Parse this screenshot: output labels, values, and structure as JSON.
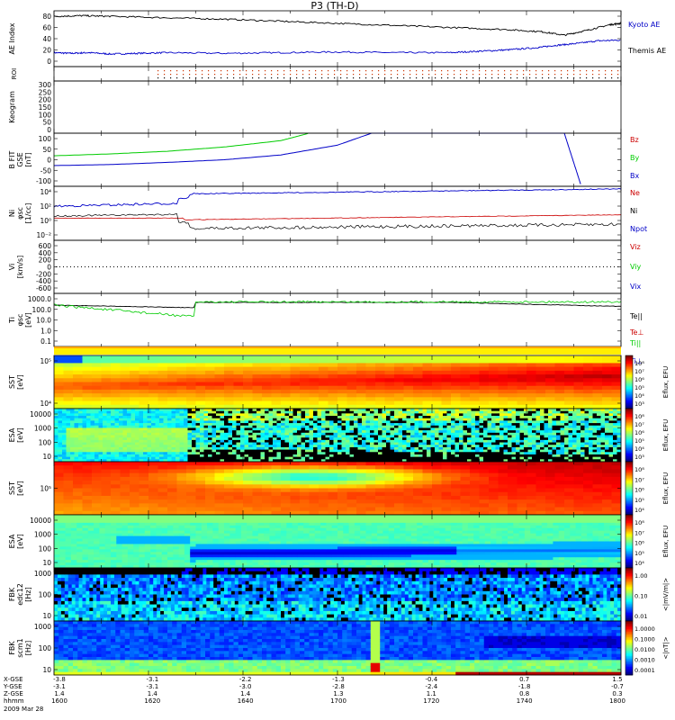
{
  "title": "P3 (TH-D)",
  "colors": {
    "black": "#000000",
    "blue": "#0000c8",
    "red": "#cc0000",
    "green": "#00cc00"
  },
  "chart_data": [
    {
      "type": "line",
      "ylabel": "AE Index",
      "ylim": [
        0,
        80
      ],
      "yticks": [
        "80",
        "60",
        "40",
        "20",
        "0"
      ],
      "series": [
        {
          "name": "Kyoto AE",
          "color": "#0000c8",
          "x": [
            0,
            0.03,
            0.06,
            0.1,
            0.15,
            0.2,
            0.3,
            0.4,
            0.5,
            0.6,
            0.7,
            0.75,
            0.8,
            0.85,
            0.88,
            0.92,
            0.96,
            1.0
          ],
          "values": [
            20,
            19,
            20,
            18,
            19,
            20,
            19,
            20,
            21,
            20,
            20,
            22,
            24,
            27,
            30,
            33,
            37,
            38
          ]
        },
        {
          "name": "Themis AE",
          "color": "#000000",
          "x": [
            0,
            0.05,
            0.1,
            0.2,
            0.3,
            0.4,
            0.5,
            0.6,
            0.7,
            0.8,
            0.86,
            0.9,
            0.94,
            0.98,
            1.0
          ],
          "values": [
            72,
            73,
            72,
            70,
            68,
            65,
            62,
            59,
            56,
            53,
            50,
            45,
            52,
            60,
            62
          ]
        }
      ]
    },
    {
      "type": "scatter",
      "ylabel": "ROI",
      "note_marks": "dotted"
    },
    {
      "type": "line",
      "ylabel": "Keogram",
      "ylim": [
        0,
        300
      ],
      "yticks": [
        "300",
        "250",
        "200",
        "150",
        "100",
        "50",
        "0"
      ]
    },
    {
      "type": "line",
      "ylabel": "B FIT",
      "ylabel2": "GSE",
      "ylabel3": "[nT]",
      "ylim": [
        -100,
        100
      ],
      "yticks": [
        "100",
        "50",
        "0",
        "-50",
        "-100"
      ],
      "series": [
        {
          "name": "Bz",
          "color": "#cc0000",
          "x": [],
          "values": []
        },
        {
          "name": "By",
          "color": "#00cc00",
          "x": [
            0,
            0.1,
            0.2,
            0.3,
            0.4,
            0.45
          ],
          "values": [
            15,
            22,
            32,
            48,
            72,
            100
          ]
        },
        {
          "name": "Bx",
          "color": "#0000c8",
          "x": [
            0,
            0.1,
            0.2,
            0.3,
            0.4,
            0.5,
            0.56,
            0.9,
            0.93
          ],
          "values": [
            -22,
            -18,
            -10,
            0,
            18,
            55,
            100,
            100,
            -100
          ]
        }
      ]
    },
    {
      "type": "line",
      "ylabel": "Ni",
      "ylabel2": "[1/cc]",
      "ylog": true,
      "yticks": [
        "10⁴",
        "10²",
        "10⁰",
        "10⁻²"
      ],
      "series": [
        {
          "name": "Ne",
          "color": "#cc0000"
        },
        {
          "name": "Ni",
          "color": "#000000"
        },
        {
          "name": "Npot",
          "color": "#0000c8"
        }
      ]
    },
    {
      "type": "line",
      "ylabel": "Vi",
      "ylabel2": "[km/s]",
      "ylim": [
        -600,
        600
      ],
      "yticks": [
        "600",
        "400",
        "200",
        "0",
        "-200",
        "-400",
        "-600"
      ],
      "series": [
        {
          "name": "Viz",
          "color": "#cc0000"
        },
        {
          "name": "Viy",
          "color": "#00cc00"
        },
        {
          "name": "Vix",
          "color": "#0000c8"
        }
      ]
    },
    {
      "type": "line",
      "ylabel": "Ti",
      "ylabel2": "[eV]",
      "ylog": true,
      "yticks": [
        "1000.0",
        "100.0",
        "10.0",
        "1.0",
        "0.1"
      ],
      "series": [
        {
          "name": "Te||",
          "color": "#000000"
        },
        {
          "name": "Te⊥",
          "color": "#cc0000"
        },
        {
          "name": "Ti||",
          "color": "#00cc00"
        },
        {
          "name": "Ti⊥",
          "color": "#0000c8"
        }
      ]
    },
    {
      "type": "heatmap",
      "ylabel": "SST",
      "ylabel2": "[eV]",
      "yticks": [
        "10⁵",
        "10⁴"
      ],
      "colorbar_label": "Eflux, EFU",
      "colorbar_ticks": [
        "10⁸",
        "10⁷",
        "10⁶",
        "10⁵",
        "10⁴",
        "10³"
      ]
    },
    {
      "type": "heatmap",
      "ylabel": "ESA",
      "ylabel2": "[eV]",
      "yticks": [
        "10000",
        "1000",
        "100",
        "10"
      ],
      "colorbar_label": "Eflux, EFU",
      "colorbar_ticks": [
        "10⁸",
        "10⁷",
        "10⁶",
        "10⁵",
        "10⁴",
        "10³"
      ]
    },
    {
      "type": "heatmap",
      "ylabel": "SST",
      "ylabel2": "[eV]",
      "yticks": [
        "10⁵"
      ],
      "colorbar_label": "Eflux, EFU",
      "colorbar_ticks": [
        "10⁸",
        "10⁷",
        "10⁶",
        "10⁵",
        "10⁴"
      ]
    },
    {
      "type": "heatmap",
      "ylabel": "ESA",
      "ylabel2": "[eV]",
      "yticks": [
        "10000",
        "1000",
        "100",
        "10"
      ],
      "colorbar_label": "Eflux, EFU",
      "colorbar_ticks": [
        "10⁸",
        "10⁷",
        "10⁶",
        "10⁵",
        "10⁴"
      ]
    },
    {
      "type": "heatmap",
      "ylabel": "FBK",
      "ylabel2": "[Hz]",
      "yticks": [
        "1000",
        "100",
        "10"
      ],
      "colorbar_label": "<|mV/m|>",
      "colorbar_ticks": [
        "1.00",
        "0.10",
        "0.01"
      ]
    },
    {
      "type": "heatmap",
      "ylabel": "FBK",
      "ylabel2": "[Hz]",
      "yticks": [
        "1000",
        "100",
        "10"
      ],
      "colorbar_label": "<|nT|>",
      "colorbar_ticks": [
        "1.0000",
        "0.1000",
        "0.0100",
        "0.0010",
        "0.0001"
      ]
    }
  ],
  "xaxis": {
    "row_labels": [
      "X-GSE",
      "Y-GSE",
      "Z-GSE",
      "hhmm",
      "2009 Mar 28"
    ],
    "columns": [
      {
        "x": "-3.8",
        "y": "-3.1",
        "z": "1.4",
        "t": "1600"
      },
      {
        "x": "-3.1",
        "y": "-3.1",
        "z": "1.4",
        "t": "1620"
      },
      {
        "x": "-2.2",
        "y": "-3.0",
        "z": "1.4",
        "t": "1640"
      },
      {
        "x": "-1.3",
        "y": "-2.8",
        "z": "1.3",
        "t": "1700"
      },
      {
        "x": "-0.4",
        "y": "-2.4",
        "z": "1.1",
        "t": "1720"
      },
      {
        "x": "0.7",
        "y": "-1.8",
        "z": "0.8",
        "t": "1740"
      },
      {
        "x": "1.5",
        "y": "-0.7",
        "z": "0.3",
        "t": "1800"
      }
    ]
  },
  "label_extra": {
    "ni_phi": "φsc",
    "ti_phi": "φsc",
    "sst1_top": "φsc",
    "esa_gaps": "φsc",
    "fbk1_sub": "edc12",
    "fbk2_sub": "scm1"
  }
}
